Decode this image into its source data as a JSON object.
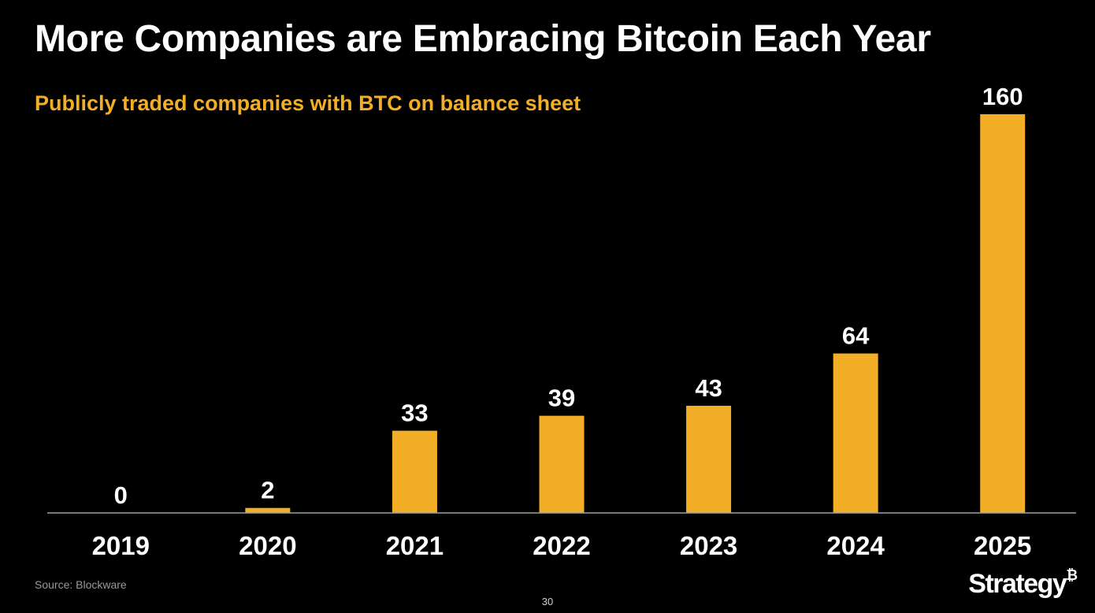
{
  "slide": {
    "title": "More Companies are Embracing Bitcoin Each Year",
    "source": "Source: Blockware",
    "page_number": "30",
    "logo_text": "Strategy",
    "logo_mark": "₿"
  },
  "colors": {
    "bar": "#F2AE27",
    "background": "#000000",
    "axis": "#a0a0a0",
    "label": "#ffffff"
  },
  "chart_data": {
    "type": "bar",
    "title": "Publicly traded companies with BTC on balance sheet",
    "xlabel": "",
    "ylabel": "",
    "categories": [
      "2019",
      "2020",
      "2021",
      "2022",
      "2023",
      "2024",
      "2025"
    ],
    "values": [
      0,
      2,
      33,
      39,
      43,
      64,
      160
    ],
    "ylim": [
      0,
      160
    ],
    "grid": false,
    "legend": "none",
    "data_labels": true
  }
}
